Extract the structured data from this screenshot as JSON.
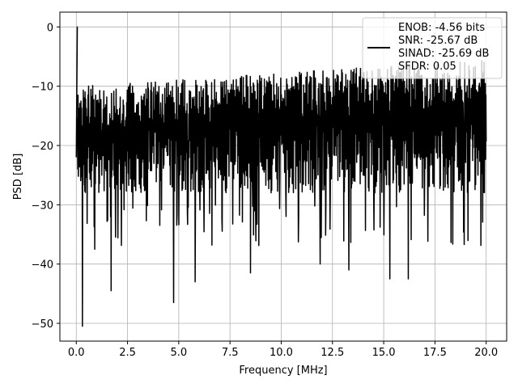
{
  "chart_data": {
    "type": "line",
    "title": "",
    "xlabel": "Frequency [MHz]",
    "ylabel": "PSD [dB]",
    "xlim": [
      -0.8,
      21.0
    ],
    "ylim": [
      -53.0,
      2.5
    ],
    "xticks": [
      0.0,
      2.5,
      5.0,
      7.5,
      10.0,
      12.5,
      15.0,
      17.5,
      20.0
    ],
    "xtick_labels": [
      "0.0",
      "2.5",
      "5.0",
      "7.5",
      "10.0",
      "12.5",
      "15.0",
      "17.5",
      "20.0"
    ],
    "yticks": [
      0,
      -10,
      -20,
      -30,
      -40,
      -50
    ],
    "ytick_labels": [
      "0",
      "−10",
      "−20",
      "−30",
      "−40",
      "−50"
    ],
    "grid": true,
    "legend_position": "top-right",
    "legend_lines": [
      "ENOB: -4.56 bits",
      "SNR: -25.67 dB",
      "SINAD: -25.69 dB",
      "SFDR: 0.05"
    ],
    "line_color": "#000000",
    "series": [
      {
        "x_range": [
          0.0,
          20.0
        ],
        "points": 1400,
        "peak": [
          0.05,
          0.0
        ],
        "notable_dips": [
          {
            "x": 0.3,
            "y": -50.5
          },
          {
            "x": 0.9,
            "y": -37.5
          },
          {
            "x": 1.7,
            "y": -44.5
          },
          {
            "x": 4.75,
            "y": -46.5
          },
          {
            "x": 5.8,
            "y": -43.0
          },
          {
            "x": 8.5,
            "y": -41.5
          },
          {
            "x": 11.9,
            "y": -40.0
          },
          {
            "x": 13.3,
            "y": -41.0
          },
          {
            "x": 15.3,
            "y": -42.5
          },
          {
            "x": 16.2,
            "y": -42.5
          }
        ],
        "upper_envelope_start": -10.0,
        "upper_envelope_end": -5.5,
        "lower_envelope": -28.0
      }
    ]
  }
}
